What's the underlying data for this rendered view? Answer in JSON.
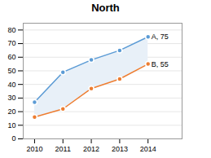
{
  "chart_data": {
    "type": "line",
    "title": "North",
    "x": [
      2010,
      2011,
      2012,
      2013,
      2014
    ],
    "series": [
      {
        "color": "#5B9BD5",
        "marker": "circle",
        "values": [
          27,
          49,
          58,
          65,
          75
        ]
      },
      {
        "color": "#ED7D31",
        "marker": "circle",
        "values": [
          16,
          22,
          37,
          44,
          55
        ]
      }
    ],
    "color": "#E8F0F8",
    "annotations": [
      {
        "text": "A, 75",
        "x": 2014,
        "y": 75
      },
      {
        "text": "B, 55",
        "x": 2014,
        "y": 55
      }
    ],
    "xlim": [
      2009.6,
      2015.2
    ],
    "xticks": [
      2010,
      2011,
      2012,
      2013,
      2014
    ],
    "ylim": [
      0,
      85
    ],
    "yticks": [
      0,
      10,
      20,
      30,
      40,
      50,
      60,
      70,
      80
    ],
    "grid": "y"
  }
}
